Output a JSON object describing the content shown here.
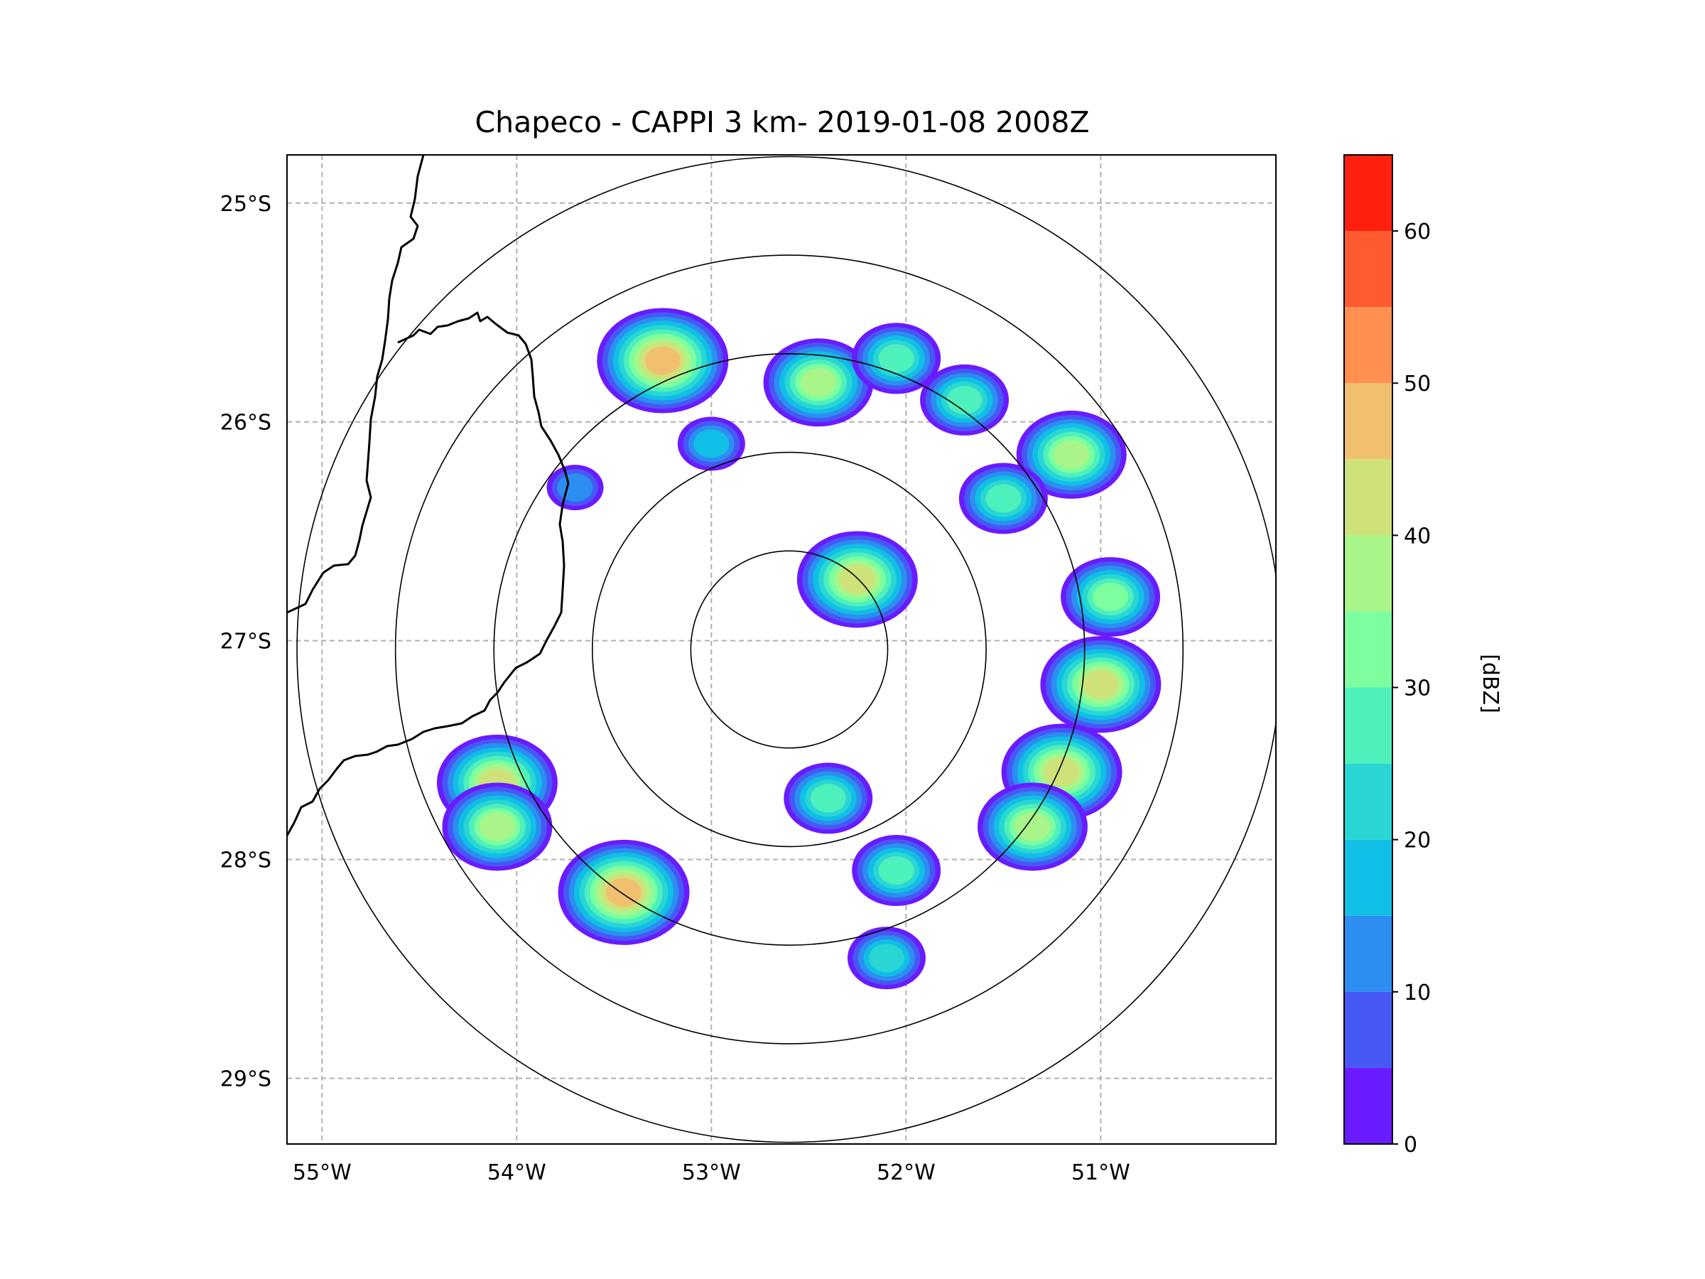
{
  "title": "Chapeco - CAPPI 3 km- 2019-01-08 2008Z",
  "map": {
    "projection": "lat-lon",
    "lon_range": [
      -55.18,
      -50.1
    ],
    "lat_range": [
      -29.3,
      -24.78
    ],
    "lon_ticks": [
      {
        "value": -55,
        "label": "55°W"
      },
      {
        "value": -54,
        "label": "54°W"
      },
      {
        "value": -53,
        "label": "53°W"
      },
      {
        "value": -52,
        "label": "52°W"
      },
      {
        "value": -51,
        "label": "51°W"
      }
    ],
    "lat_ticks": [
      {
        "value": -25,
        "label": "25°S"
      },
      {
        "value": -26,
        "label": "26°S"
      },
      {
        "value": -27,
        "label": "27°S"
      },
      {
        "value": -28,
        "label": "28°S"
      },
      {
        "value": -29,
        "label": "29°S"
      }
    ],
    "gridlines": true,
    "radar_center": {
      "lon": -52.6,
      "lat": -27.04
    },
    "range_rings_km": [
      50,
      100,
      150,
      200,
      250
    ]
  },
  "colorbar": {
    "label": "[dBZ]",
    "boundaries": [
      0,
      5,
      10,
      15,
      20,
      25,
      30,
      35,
      40,
      45,
      50,
      55,
      60,
      65
    ],
    "colors": [
      "#6a1bff",
      "#4659f5",
      "#2c8ef0",
      "#10bfe6",
      "#2ad6d4",
      "#4ef0bc",
      "#7dffa0",
      "#a9f58a",
      "#cfe27a",
      "#f0c070",
      "#ff9050",
      "#ff5a30",
      "#ff2010"
    ],
    "tick_labels": [
      "0",
      "10",
      "20",
      "30",
      "40",
      "50",
      "60"
    ]
  },
  "echoes": [
    {
      "lon": -53.25,
      "lat": -25.72,
      "dbz": 48
    },
    {
      "lon": -52.45,
      "lat": -25.82,
      "dbz": 38
    },
    {
      "lon": -52.05,
      "lat": -25.71,
      "dbz": 32
    },
    {
      "lon": -51.7,
      "lat": -25.9,
      "dbz": 30
    },
    {
      "lon": -51.15,
      "lat": -26.15,
      "dbz": 40
    },
    {
      "lon": -51.5,
      "lat": -26.35,
      "dbz": 30
    },
    {
      "lon": -50.95,
      "lat": -26.8,
      "dbz": 34
    },
    {
      "lon": -51.0,
      "lat": -27.2,
      "dbz": 44
    },
    {
      "lon": -51.2,
      "lat": -27.6,
      "dbz": 46
    },
    {
      "lon": -51.35,
      "lat": -27.85,
      "dbz": 42
    },
    {
      "lon": -52.25,
      "lat": -26.72,
      "dbz": 46
    },
    {
      "lon": -52.4,
      "lat": -27.72,
      "dbz": 32
    },
    {
      "lon": -52.05,
      "lat": -28.05,
      "dbz": 30
    },
    {
      "lon": -52.1,
      "lat": -28.45,
      "dbz": 26
    },
    {
      "lon": -53.45,
      "lat": -28.15,
      "dbz": 50
    },
    {
      "lon": -54.1,
      "lat": -27.65,
      "dbz": 44
    },
    {
      "lon": -54.1,
      "lat": -27.85,
      "dbz": 40
    },
    {
      "lon": -53.0,
      "lat": -26.1,
      "dbz": 20
    },
    {
      "lon": -53.7,
      "lat": -26.3,
      "dbz": 15
    }
  ]
}
